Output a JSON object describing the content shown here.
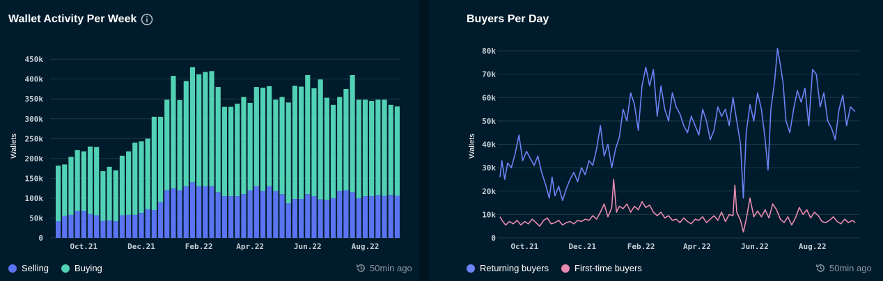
{
  "colors": {
    "selling": "#5a74f2",
    "buying": "#52d1b5",
    "returning": "#6b84f7",
    "first_time": "#e98bb1",
    "grid": "#1f3a47"
  },
  "left": {
    "title": "Wallet Activity Per Week",
    "info_icon": "info-circle-icon",
    "legend": [
      "Selling",
      "Buying"
    ],
    "updated": "50min ago",
    "updated_icon": "clock-refresh-icon"
  },
  "right": {
    "title": "Buyers Per Day",
    "legend": [
      "Returning buyers",
      "First-time buyers"
    ],
    "updated": "50min ago",
    "updated_icon": "clock-refresh-icon"
  },
  "chart_data": [
    {
      "type": "bar",
      "stacked": true,
      "title": "Wallet Activity Per Week",
      "ylabel": "Wallets",
      "xlabel": "",
      "ylim": [
        0,
        450000
      ],
      "yticks": [
        0,
        50000,
        100000,
        150000,
        200000,
        250000,
        300000,
        350000,
        400000,
        450000
      ],
      "ytick_labels": [
        "0",
        "50k",
        "100k",
        "150k",
        "200k",
        "250k",
        "300k",
        "350k",
        "400k",
        "450k"
      ],
      "xtick_labels": [
        {
          "label": "Oct.21",
          "index": 4
        },
        {
          "label": "Dec.21",
          "index": 13
        },
        {
          "label": "Feb.22",
          "index": 22
        },
        {
          "label": "Apr.22",
          "index": 30
        },
        {
          "label": "Jun.22",
          "index": 39
        },
        {
          "label": "Aug.22",
          "index": 48
        }
      ],
      "series": [
        {
          "name": "Selling",
          "values": [
            42000,
            55000,
            58000,
            68000,
            68000,
            60000,
            57000,
            43000,
            44000,
            42000,
            57000,
            58000,
            58000,
            63000,
            72000,
            70000,
            90000,
            120000,
            125000,
            120000,
            130000,
            140000,
            130000,
            130000,
            130000,
            115000,
            105000,
            105000,
            105000,
            110000,
            120000,
            130000,
            118000,
            130000,
            118000,
            110000,
            87000,
            98000,
            98000,
            110000,
            105000,
            97000,
            95000,
            100000,
            118000,
            120000,
            115000,
            100000,
            105000,
            105000,
            108000,
            106000,
            108000,
            106000
          ]
        },
        {
          "name": "Buying",
          "values": [
            140000,
            130000,
            146000,
            153000,
            150000,
            170000,
            172000,
            125000,
            135000,
            128000,
            150000,
            160000,
            182000,
            180000,
            178000,
            235000,
            215000,
            228000,
            283000,
            227000,
            265000,
            290000,
            282000,
            288000,
            290000,
            265000,
            225000,
            225000,
            233000,
            245000,
            220000,
            250000,
            260000,
            252000,
            230000,
            245000,
            254000,
            285000,
            283000,
            300000,
            272000,
            302000,
            258000,
            235000,
            237000,
            255000,
            295000,
            248000,
            243000,
            240000,
            240000,
            242000,
            227000,
            225000
          ]
        }
      ]
    },
    {
      "type": "line",
      "title": "Buyers Per Day",
      "ylabel": "Wallets",
      "xlabel": "",
      "ylim": [
        0,
        80000
      ],
      "yticks": [
        0,
        10000,
        20000,
        30000,
        40000,
        50000,
        60000,
        70000,
        80000
      ],
      "ytick_labels": [
        "0",
        "10k",
        "20k",
        "30k",
        "40k",
        "50k",
        "60k",
        "70k",
        "80k"
      ],
      "x_range_days": [
        0,
        375
      ],
      "xtick_labels": [
        {
          "label": "Oct.21",
          "day": 26
        },
        {
          "label": "Dec.21",
          "day": 87
        },
        {
          "label": "Feb.22",
          "day": 149
        },
        {
          "label": "Apr.22",
          "day": 208
        },
        {
          "label": "Jun.22",
          "day": 269
        },
        {
          "label": "Aug.22",
          "day": 330
        }
      ],
      "series": [
        {
          "name": "Returning buyers",
          "points": [
            [
              0,
              26000
            ],
            [
              2,
              33000
            ],
            [
              5,
              25000
            ],
            [
              8,
              32000
            ],
            [
              12,
              30000
            ],
            [
              16,
              36000
            ],
            [
              20,
              44000
            ],
            [
              24,
              33000
            ],
            [
              28,
              37000
            ],
            [
              32,
              34000
            ],
            [
              36,
              31000
            ],
            [
              40,
              35000
            ],
            [
              44,
              28000
            ],
            [
              48,
              23000
            ],
            [
              52,
              17000
            ],
            [
              55,
              26000
            ],
            [
              58,
              18000
            ],
            [
              62,
              22000
            ],
            [
              66,
              16000
            ],
            [
              70,
              21000
            ],
            [
              74,
              25000
            ],
            [
              78,
              28000
            ],
            [
              82,
              24000
            ],
            [
              86,
              30000
            ],
            [
              90,
              27000
            ],
            [
              94,
              33000
            ],
            [
              98,
              31000
            ],
            [
              102,
              38000
            ],
            [
              106,
              48000
            ],
            [
              110,
              35000
            ],
            [
              114,
              40000
            ],
            [
              118,
              30000
            ],
            [
              122,
              38000
            ],
            [
              126,
              43000
            ],
            [
              130,
              55000
            ],
            [
              134,
              50000
            ],
            [
              138,
              62000
            ],
            [
              142,
              57000
            ],
            [
              146,
              46000
            ],
            [
              150,
              65000
            ],
            [
              154,
              73000
            ],
            [
              158,
              65000
            ],
            [
              162,
              72000
            ],
            [
              166,
              52000
            ],
            [
              170,
              65000
            ],
            [
              174,
              55000
            ],
            [
              178,
              50000
            ],
            [
              182,
              62000
            ],
            [
              186,
              56000
            ],
            [
              190,
              53000
            ],
            [
              194,
              48000
            ],
            [
              198,
              45000
            ],
            [
              202,
              52000
            ],
            [
              206,
              48000
            ],
            [
              210,
              44000
            ],
            [
              214,
              55000
            ],
            [
              218,
              50000
            ],
            [
              222,
              42000
            ],
            [
              226,
              46000
            ],
            [
              230,
              56000
            ],
            [
              234,
              52000
            ],
            [
              238,
              55000
            ],
            [
              242,
              48000
            ],
            [
              246,
              60000
            ],
            [
              250,
              50000
            ],
            [
              254,
              40000
            ],
            [
              257,
              17000
            ],
            [
              260,
              45000
            ],
            [
              264,
              57000
            ],
            [
              268,
              50000
            ],
            [
              272,
              62000
            ],
            [
              276,
              55000
            ],
            [
              280,
              42000
            ],
            [
              283,
              29000
            ],
            [
              286,
              55000
            ],
            [
              290,
              67000
            ],
            [
              293,
              81000
            ],
            [
              296,
              74000
            ],
            [
              299,
              66000
            ],
            [
              302,
              50000
            ],
            [
              306,
              45000
            ],
            [
              310,
              55000
            ],
            [
              314,
              63000
            ],
            [
              318,
              58000
            ],
            [
              322,
              64000
            ],
            [
              326,
              48000
            ],
            [
              330,
              72000
            ],
            [
              334,
              70000
            ],
            [
              338,
              56000
            ],
            [
              342,
              62000
            ],
            [
              346,
              50000
            ],
            [
              350,
              47000
            ],
            [
              354,
              42000
            ],
            [
              358,
              55000
            ],
            [
              362,
              61000
            ],
            [
              366,
              48000
            ],
            [
              370,
              56000
            ],
            [
              375,
              54000
            ]
          ]
        },
        {
          "name": "First-time buyers",
          "points": [
            [
              0,
              9000
            ],
            [
              3,
              7000
            ],
            [
              6,
              5500
            ],
            [
              10,
              7000
            ],
            [
              14,
              6000
            ],
            [
              18,
              7500
            ],
            [
              22,
              5500
            ],
            [
              26,
              7000
            ],
            [
              30,
              6000
            ],
            [
              34,
              8000
            ],
            [
              38,
              6500
            ],
            [
              42,
              5000
            ],
            [
              46,
              7500
            ],
            [
              50,
              8500
            ],
            [
              54,
              6000
            ],
            [
              58,
              6500
            ],
            [
              62,
              7500
            ],
            [
              66,
              5500
            ],
            [
              70,
              6500
            ],
            [
              74,
              7000
            ],
            [
              78,
              6000
            ],
            [
              82,
              7500
            ],
            [
              86,
              7000
            ],
            [
              90,
              8000
            ],
            [
              94,
              7500
            ],
            [
              98,
              9500
            ],
            [
              102,
              8000
            ],
            [
              106,
              11000
            ],
            [
              110,
              14500
            ],
            [
              114,
              9000
            ],
            [
              118,
              13000
            ],
            [
              120,
              25000
            ],
            [
              123,
              11000
            ],
            [
              126,
              13500
            ],
            [
              130,
              12500
            ],
            [
              134,
              14500
            ],
            [
              138,
              11000
            ],
            [
              142,
              13500
            ],
            [
              146,
              12000
            ],
            [
              150,
              15500
            ],
            [
              154,
              13000
            ],
            [
              158,
              14000
            ],
            [
              162,
              11000
            ],
            [
              166,
              9500
            ],
            [
              170,
              11000
            ],
            [
              174,
              8500
            ],
            [
              178,
              9500
            ],
            [
              182,
              7500
            ],
            [
              186,
              8000
            ],
            [
              190,
              6500
            ],
            [
              194,
              8500
            ],
            [
              198,
              7000
            ],
            [
              202,
              6000
            ],
            [
              206,
              8000
            ],
            [
              210,
              7500
            ],
            [
              214,
              9000
            ],
            [
              218,
              6500
            ],
            [
              222,
              8000
            ],
            [
              226,
              9500
            ],
            [
              230,
              7500
            ],
            [
              234,
              11000
            ],
            [
              238,
              7000
            ],
            [
              242,
              10000
            ],
            [
              246,
              9500
            ],
            [
              248,
              22500
            ],
            [
              250,
              11000
            ],
            [
              254,
              7500
            ],
            [
              257,
              2500
            ],
            [
              260,
              8000
            ],
            [
              264,
              17000
            ],
            [
              268,
              9000
            ],
            [
              272,
              11500
            ],
            [
              276,
              9000
            ],
            [
              280,
              12000
            ],
            [
              284,
              8500
            ],
            [
              288,
              14500
            ],
            [
              292,
              12000
            ],
            [
              296,
              8000
            ],
            [
              300,
              6500
            ],
            [
              304,
              9000
            ],
            [
              308,
              5500
            ],
            [
              312,
              8500
            ],
            [
              316,
              13000
            ],
            [
              320,
              10000
            ],
            [
              324,
              12000
            ],
            [
              328,
              8500
            ],
            [
              332,
              11000
            ],
            [
              336,
              9500
            ],
            [
              340,
              7000
            ],
            [
              344,
              6500
            ],
            [
              348,
              7500
            ],
            [
              352,
              9000
            ],
            [
              356,
              7000
            ],
            [
              360,
              6000
            ],
            [
              364,
              8000
            ],
            [
              368,
              6500
            ],
            [
              372,
              7500
            ],
            [
              375,
              6500
            ]
          ]
        }
      ]
    }
  ]
}
